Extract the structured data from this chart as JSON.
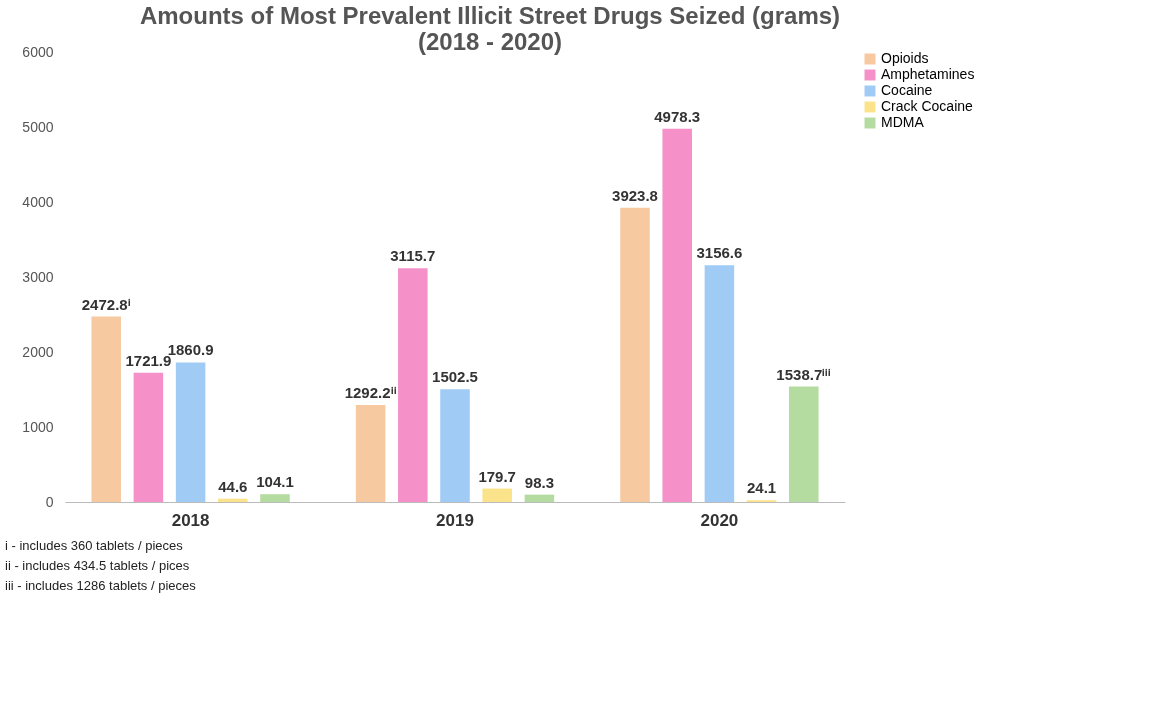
{
  "chart_data": {
    "type": "bar",
    "title": "Amounts of Most Prevalent Illicit Street Drugs Seized (grams)\n(2018 - 2020)",
    "categories": [
      "2018",
      "2019",
      "2020"
    ],
    "series": [
      {
        "name": "Opioids",
        "color": "#f7c9a0",
        "values": [
          2472.8,
          1292.2,
          3923.8
        ],
        "value_labels": [
          "2472.8ⁱ",
          "1292.2ⁱⁱ",
          "3923.8"
        ]
      },
      {
        "name": "Amphetamines",
        "color": "#f590c8",
        "values": [
          1721.9,
          3115.7,
          4978.3
        ],
        "value_labels": [
          "1721.9",
          "3115.7",
          "4978.3"
        ]
      },
      {
        "name": "Cocaine",
        "color": "#9fcbf5",
        "values": [
          1860.9,
          1502.5,
          3156.6
        ],
        "value_labels": [
          "1860.9",
          "1502.5",
          "3156.6"
        ]
      },
      {
        "name": "Crack Cocaine",
        "color": "#fbe38c",
        "values": [
          44.6,
          179.7,
          24.1
        ],
        "value_labels": [
          "44.6",
          "179.7",
          "24.1"
        ]
      },
      {
        "name": "MDMA",
        "color": "#b5dca0",
        "values": [
          104.1,
          98.3,
          1538.7
        ],
        "value_labels": [
          "104.1",
          "98.3",
          "1538.7ⁱⁱⁱ"
        ]
      }
    ],
    "ylim": [
      0,
      6000
    ],
    "yticks": [
      0,
      1000,
      2000,
      3000,
      4000,
      5000,
      6000
    ],
    "grid": false,
    "legend": "right",
    "annotations": [
      "i -  includes 360 tablets / pieces",
      "ii -  includes 434.5 tablets / pices",
      "iii - includes 1286 tablets / pieces"
    ]
  }
}
